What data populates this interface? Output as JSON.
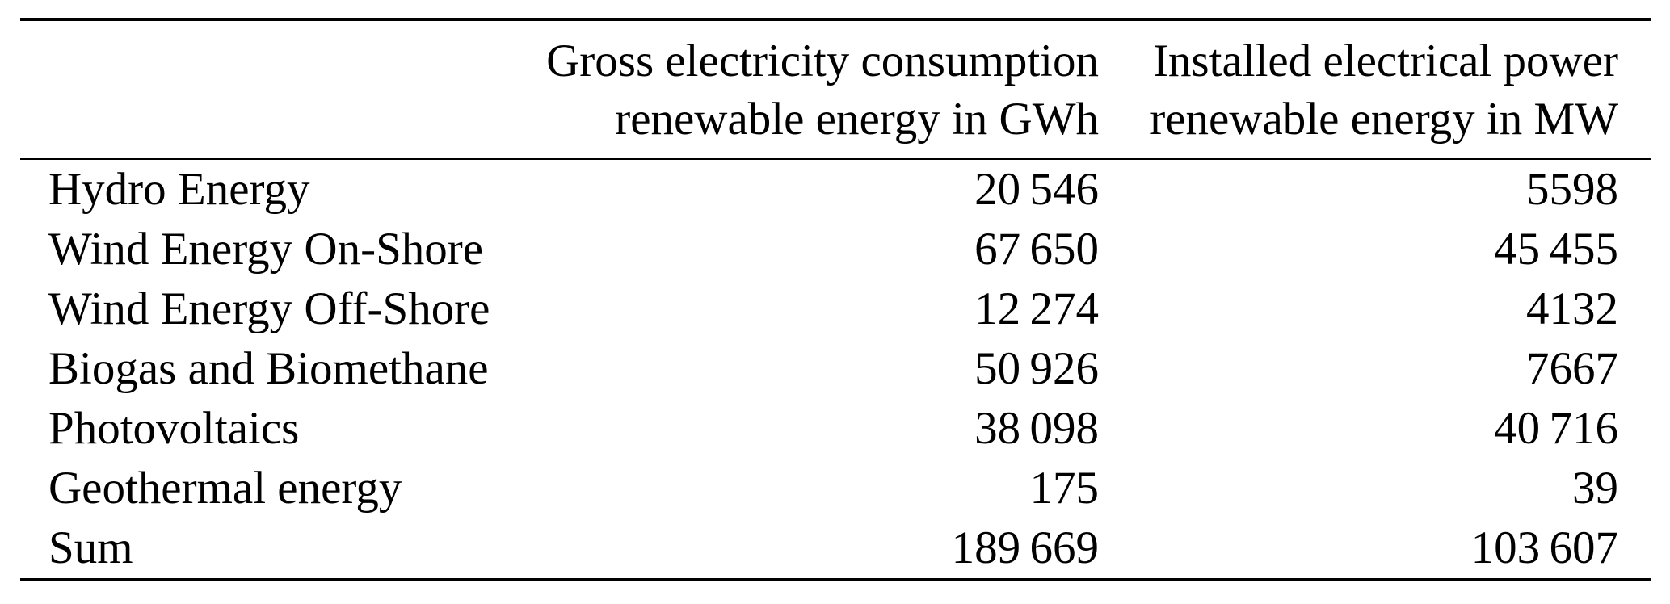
{
  "page": {
    "background": "#ffffff",
    "text_color": "#000000",
    "rule_color": "#000000"
  },
  "table": {
    "header": {
      "col_label": "",
      "col_gwh": {
        "line1": "Gross electricity consumption",
        "line2": "renewable energy in GWh"
      },
      "col_mw": {
        "line1": "Installed electrical power",
        "line2": "renewable energy in MW"
      }
    },
    "rows": [
      {
        "label": "Hydro Energy",
        "gwh": "20 546",
        "mw": "5598"
      },
      {
        "label": "Wind Energy On-Shore",
        "gwh": "67 650",
        "mw": "45 455"
      },
      {
        "label": "Wind Energy Off-Shore",
        "gwh": "12 274",
        "mw": "4132"
      },
      {
        "label": "Biogas and Biomethane",
        "gwh": "50 926",
        "mw": "7667"
      },
      {
        "label": "Photovoltaics",
        "gwh": "38 098",
        "mw": "40 716"
      },
      {
        "label": "Geothermal energy",
        "gwh": "175",
        "mw": "39"
      },
      {
        "label": "Sum",
        "gwh": "189 669",
        "mw": "103 607"
      }
    ]
  },
  "chart_data": {
    "type": "table",
    "columns": [
      "",
      "Gross electricity consumption renewable energy in GWh",
      "Installed electrical power renewable energy in MW"
    ],
    "rows": [
      [
        "Hydro Energy",
        20546,
        5598
      ],
      [
        "Wind Energy On-Shore",
        67650,
        45455
      ],
      [
        "Wind Energy Off-Shore",
        12274,
        4132
      ],
      [
        "Biogas and Biomethane",
        50926,
        7667
      ],
      [
        "Photovoltaics",
        38098,
        40716
      ],
      [
        "Geothermal energy",
        175,
        39
      ],
      [
        "Sum",
        189669,
        103607
      ]
    ]
  }
}
